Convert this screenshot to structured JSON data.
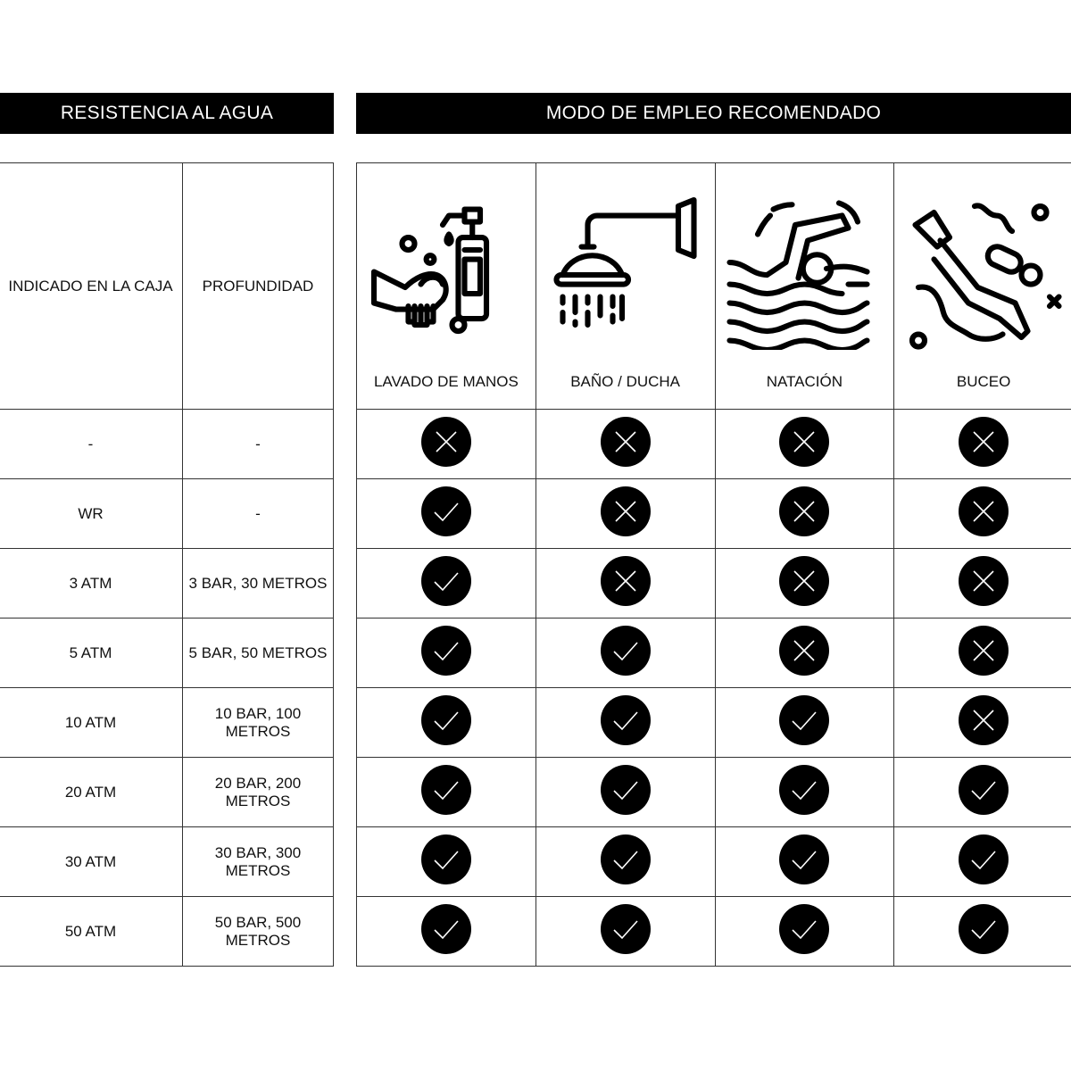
{
  "headers": {
    "left": "RESISTENCIA AL AGUA",
    "right": "MODO DE EMPLEO RECOMENDADO"
  },
  "left_columns": [
    "INDICADO EN LA CAJA",
    "PROFUNDIDAD"
  ],
  "uses": [
    {
      "label": "LAVADO DE MANOS",
      "icon": "hand-washing-icon"
    },
    {
      "label": "BAÑO / DUCHA",
      "icon": "shower-icon"
    },
    {
      "label": "NATACIÓN",
      "icon": "swimming-icon"
    },
    {
      "label": "BUCEO",
      "icon": "diving-icon"
    }
  ],
  "rows": [
    {
      "indicated": "-",
      "depth": "-",
      "marks": [
        "no",
        "no",
        "no",
        "no"
      ]
    },
    {
      "indicated": "WR",
      "depth": "-",
      "marks": [
        "yes",
        "no",
        "no",
        "no"
      ]
    },
    {
      "indicated": "3 ATM",
      "depth": "3 BAR, 30 METROS",
      "marks": [
        "yes",
        "no",
        "no",
        "no"
      ]
    },
    {
      "indicated": "5 ATM",
      "depth": "5 BAR, 50 METROS",
      "marks": [
        "yes",
        "yes",
        "no",
        "no"
      ]
    },
    {
      "indicated": "10 ATM",
      "depth": "10 BAR, 100 METROS",
      "marks": [
        "yes",
        "yes",
        "yes",
        "no"
      ]
    },
    {
      "indicated": "20 ATM",
      "depth": "20 BAR, 200 METROS",
      "marks": [
        "yes",
        "yes",
        "yes",
        "yes"
      ]
    },
    {
      "indicated": "30 ATM",
      "depth": "30 BAR, 300 METROS",
      "marks": [
        "yes",
        "yes",
        "yes",
        "yes"
      ]
    },
    {
      "indicated": "50 ATM",
      "depth": "50 BAR, 500 METROS",
      "marks": [
        "yes",
        "yes",
        "yes",
        "yes"
      ]
    }
  ]
}
